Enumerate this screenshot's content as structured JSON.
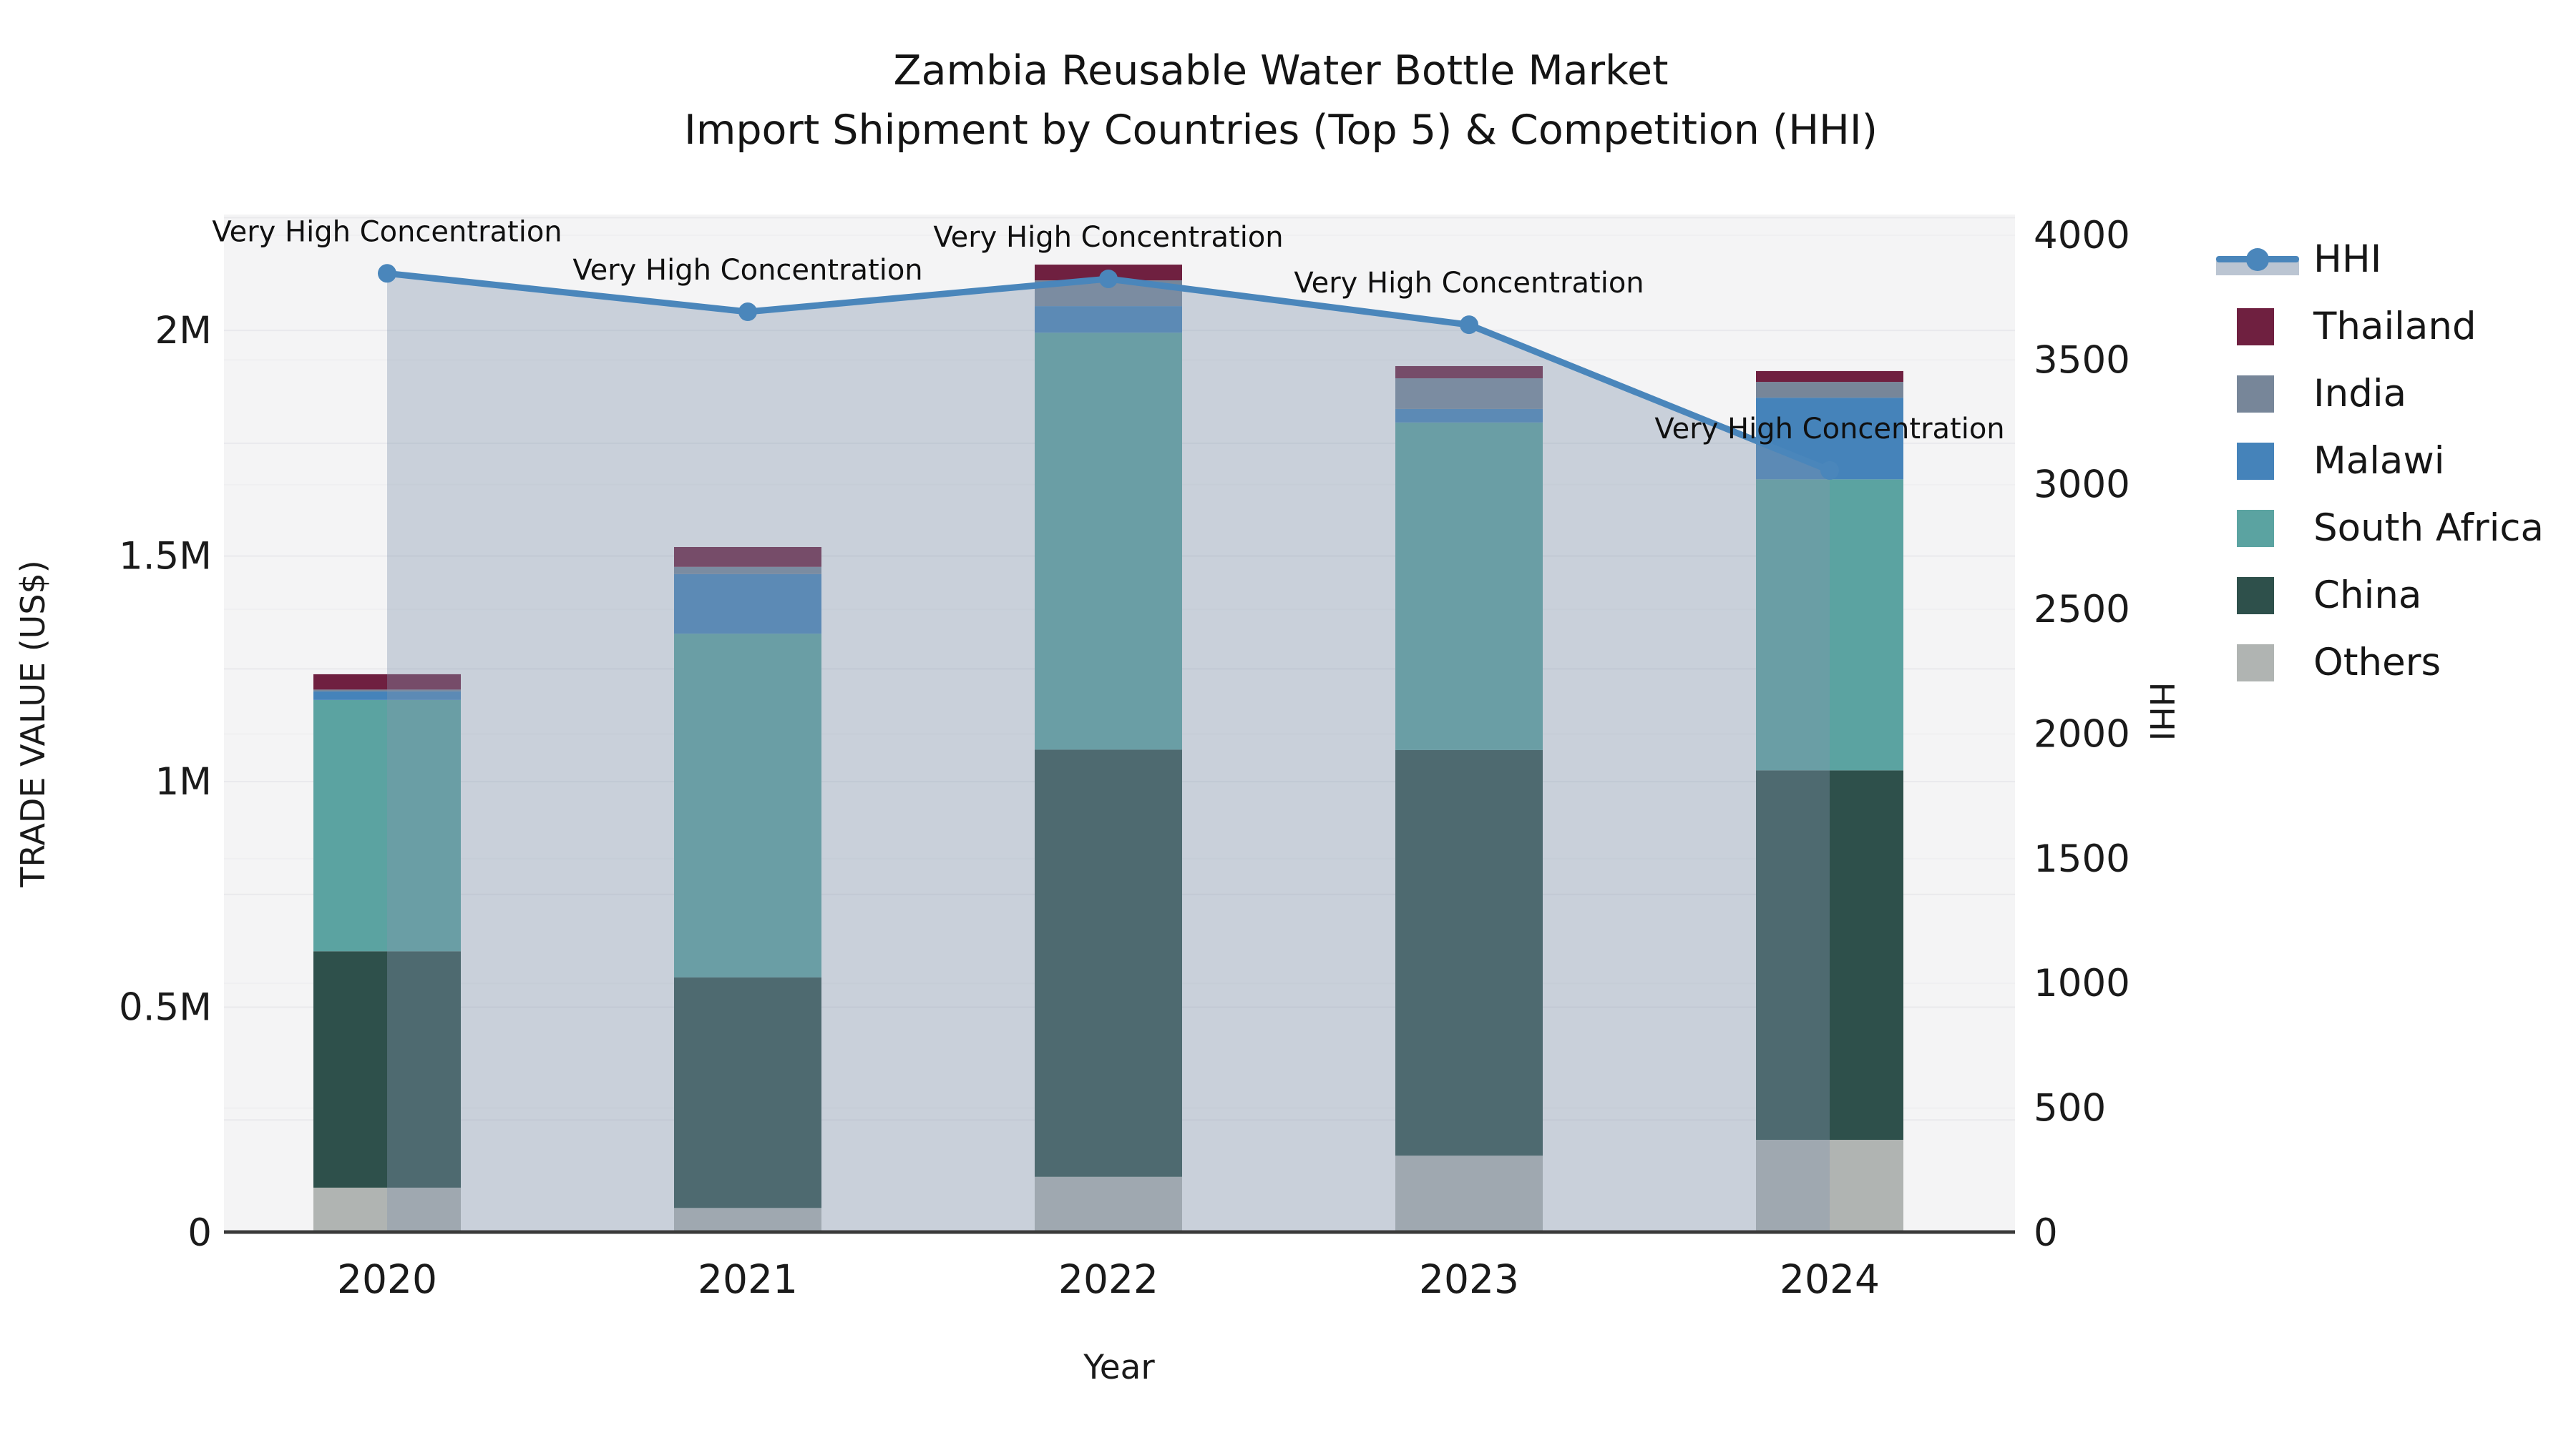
{
  "title": {
    "line1": "Zambia Reusable Water Bottle Market",
    "line2": "Import Shipment by Countries (Top 5) & Competition (HHI)"
  },
  "chart_data": {
    "type": "bar+line",
    "categories": [
      "2020",
      "2021",
      "2022",
      "2023",
      "2024"
    ],
    "bar_unit": "M US$",
    "series": [
      {
        "name": "Others",
        "color": "#b0b4b2",
        "values": [
          0.1,
          0.055,
          0.124,
          0.171,
          0.206
        ]
      },
      {
        "name": "China",
        "color": "#2e504b",
        "values": [
          0.524,
          0.511,
          0.947,
          0.899,
          0.819
        ]
      },
      {
        "name": "South Africa",
        "color": "#5ba3a1",
        "values": [
          0.557,
          0.762,
          0.924,
          0.726,
          0.645
        ]
      },
      {
        "name": "Malawi",
        "color": "#4583ba",
        "values": [
          0.019,
          0.132,
          0.059,
          0.03,
          0.181
        ]
      },
      {
        "name": "India",
        "color": "#778699",
        "values": [
          0.004,
          0.016,
          0.057,
          0.068,
          0.035
        ]
      },
      {
        "name": "Thailand",
        "color": "#6f2040",
        "values": [
          0.034,
          0.044,
          0.035,
          0.027,
          0.024
        ]
      }
    ],
    "hhi": {
      "name": "HHI",
      "line_color": "#4a86bb",
      "fill_color": "rgba(132,150,173,0.38)",
      "values": [
        3847,
        3693,
        3825,
        3641,
        3057
      ]
    },
    "annotations": [
      "Very High Concentration",
      "Very High Concentration",
      "Very High Concentration",
      "Very High Concentration",
      "Very High Concentration"
    ],
    "xlabel": "Year",
    "left_axis": {
      "label": "TRADE VALUE (US$)",
      "ticks": [
        {
          "value": 0,
          "label": "0"
        },
        {
          "value": 0.5,
          "label": "0.5M"
        },
        {
          "value": 1,
          "label": "1M"
        },
        {
          "value": 1.5,
          "label": "1.5M"
        },
        {
          "value": 2,
          "label": "2M"
        }
      ],
      "max": 2.257
    },
    "right_axis": {
      "label": "HHI",
      "ticks": [
        0,
        500,
        1000,
        1500,
        2000,
        2500,
        3000,
        3500,
        4000
      ],
      "max": 4083
    },
    "plot_bg": "#f4f4f5",
    "grid_color": "#e9e9ec",
    "axis_line_color": "#3a3a3a",
    "annotation_color": "#101010"
  },
  "legend": {
    "items": [
      {
        "label": "HHI",
        "type": "line",
        "color": "#4a86bb",
        "band": "rgba(132,150,173,0.55)"
      },
      {
        "label": "Thailand",
        "type": "square",
        "color": "#6f2040"
      },
      {
        "label": "India",
        "type": "square",
        "color": "#778699"
      },
      {
        "label": "Malawi",
        "type": "square",
        "color": "#4583ba"
      },
      {
        "label": "South Africa",
        "type": "square",
        "color": "#5ba3a1"
      },
      {
        "label": "China",
        "type": "square",
        "color": "#2e504b"
      },
      {
        "label": "Others",
        "type": "square",
        "color": "#b0b4b2"
      }
    ]
  }
}
